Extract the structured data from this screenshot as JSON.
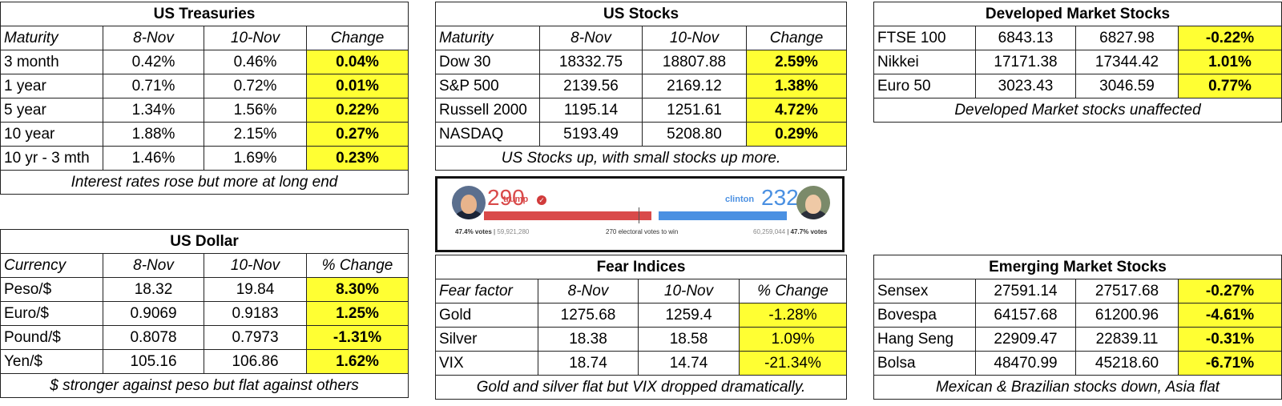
{
  "treasuries": {
    "title": "US Treasuries",
    "headers": [
      "Maturity",
      "8-Nov",
      "10-Nov",
      "Change"
    ],
    "rows": [
      [
        "3 month",
        "0.42%",
        "0.46%",
        "0.04%"
      ],
      [
        "1 year",
        "0.71%",
        "0.72%",
        "0.01%"
      ],
      [
        "5 year",
        "1.34%",
        "1.56%",
        "0.22%"
      ],
      [
        "10 year",
        "1.88%",
        "2.15%",
        "0.27%"
      ],
      [
        "10 yr - 3 mth",
        "1.46%",
        "1.69%",
        "0.23%"
      ]
    ],
    "note": "Interest rates rose but more at long end"
  },
  "dollar": {
    "title": "US Dollar",
    "headers": [
      "Currency",
      "8-Nov",
      "10-Nov",
      "% Change"
    ],
    "rows": [
      [
        "Peso/$",
        "18.32",
        "19.84",
        "8.30%"
      ],
      [
        "Euro/$",
        "0.9069",
        "0.9183",
        "1.25%"
      ],
      [
        "Pound/$",
        "0.8078",
        "0.7973",
        "-1.31%"
      ],
      [
        "Yen/$",
        "105.16",
        "106.86",
        "1.62%"
      ]
    ],
    "note": "$ stronger against peso but flat against others"
  },
  "stocks": {
    "title": "US Stocks",
    "headers": [
      "Maturity",
      "8-Nov",
      "10-Nov",
      "Change"
    ],
    "rows": [
      [
        "Dow 30",
        "18332.75",
        "18807.88",
        "2.59%"
      ],
      [
        "S&P 500",
        "2139.56",
        "2169.12",
        "1.38%"
      ],
      [
        "Russell 2000",
        "1195.14",
        "1251.61",
        "4.72%"
      ],
      [
        "NASDAQ",
        "5193.49",
        "5208.80",
        "0.29%"
      ]
    ],
    "note": "US Stocks up, with small stocks up more."
  },
  "election": {
    "trump_votes": "290",
    "trump_label": "trump",
    "clinton_votes": "232",
    "clinton_label": "clinton",
    "trump_popular": "47.4% votes",
    "trump_count": "59,921,280",
    "clinton_count": "60,259,044",
    "clinton_popular": "47.7% votes",
    "win_text": "270 electoral votes to win",
    "red": "#d94a4a",
    "blue": "#4a90e2"
  },
  "fear": {
    "title": "Fear Indices",
    "headers": [
      "Fear factor",
      "8-Nov",
      "10-Nov",
      "% Change"
    ],
    "rows": [
      [
        "Gold",
        "1275.68",
        "1259.4",
        "-1.28%"
      ],
      [
        "Silver",
        "18.38",
        "18.58",
        "1.09%"
      ],
      [
        "VIX",
        "18.74",
        "14.74",
        "-21.34%"
      ]
    ],
    "note": "Gold and silver flat but VIX dropped dramatically."
  },
  "developed": {
    "title": "Developed Market Stocks",
    "rows": [
      [
        "FTSE 100",
        "6843.13",
        "6827.98",
        "-0.22%"
      ],
      [
        "Nikkei",
        "17171.38",
        "17344.42",
        "1.01%"
      ],
      [
        "Euro 50",
        "3023.43",
        "3046.59",
        "0.77%"
      ]
    ],
    "note": "Developed Market stocks unaffected"
  },
  "emerging": {
    "title": "Emerging Market Stocks",
    "rows": [
      [
        "Sensex",
        "27591.14",
        "27517.68",
        "-0.27%"
      ],
      [
        "Bovespa",
        "64157.68",
        "61200.96",
        "-4.61%"
      ],
      [
        "Hang Seng",
        "22909.47",
        "22839.11",
        "-0.31%"
      ],
      [
        "Bolsa",
        "48470.99",
        "45218.60",
        "-6.71%"
      ]
    ],
    "note": "Mexican & Brazilian stocks down, Asia flat"
  },
  "highlight_color": "#ffff33"
}
